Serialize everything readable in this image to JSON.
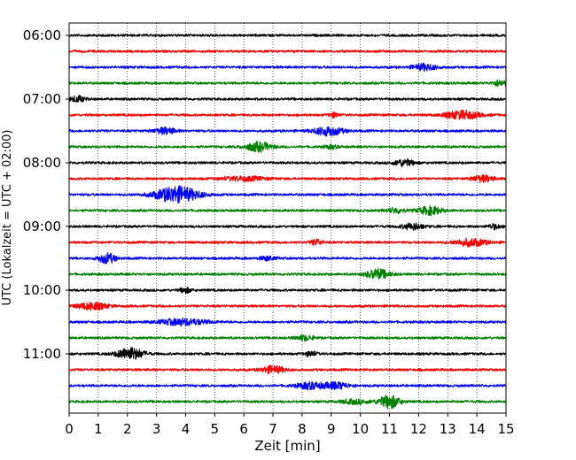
{
  "chart_data": {
    "type": "line",
    "subtype": "helicorder",
    "xlabel": "Zeit  [min]",
    "ylabel": "UTC (Lokalzeit = UTC + 02:00)",
    "xlim": [
      0,
      15
    ],
    "x_ticks": [
      0,
      1,
      2,
      3,
      4,
      5,
      6,
      7,
      8,
      9,
      10,
      11,
      12,
      13,
      14,
      15
    ],
    "y_tick_labels": [
      "06:00",
      "07:00",
      "08:00",
      "09:00",
      "10:00",
      "11:00"
    ],
    "grid": {
      "x": true,
      "y": false,
      "style": "dotted"
    },
    "trace_colors": [
      "#000000",
      "#ff0000",
      "#0000ff",
      "#008000"
    ],
    "traces": [
      {
        "start": "06:00",
        "events": []
      },
      {
        "start": "06:15",
        "events": []
      },
      {
        "start": "06:30",
        "events": [
          {
            "t": 12.2,
            "amp": 0.4,
            "dur": 0.8
          }
        ]
      },
      {
        "start": "06:45",
        "events": [
          {
            "t": 14.8,
            "amp": 0.35,
            "dur": 0.5
          }
        ]
      },
      {
        "start": "07:00",
        "events": [
          {
            "t": 0.3,
            "amp": 0.35,
            "dur": 0.5
          }
        ]
      },
      {
        "start": "07:15",
        "events": [
          {
            "t": 9.1,
            "amp": 0.3,
            "dur": 0.3
          },
          {
            "t": 13.5,
            "amp": 0.5,
            "dur": 1.2
          }
        ]
      },
      {
        "start": "07:30",
        "events": [
          {
            "t": 3.3,
            "amp": 0.4,
            "dur": 0.7
          },
          {
            "t": 8.9,
            "amp": 0.55,
            "dur": 1.0
          }
        ]
      },
      {
        "start": "07:45",
        "events": [
          {
            "t": 6.5,
            "amp": 0.55,
            "dur": 0.9
          },
          {
            "t": 9.0,
            "amp": 0.2,
            "dur": 0.5
          }
        ]
      },
      {
        "start": "08:00",
        "events": [
          {
            "t": 11.5,
            "amp": 0.4,
            "dur": 0.7
          }
        ]
      },
      {
        "start": "08:15",
        "events": [
          {
            "t": 6.0,
            "amp": 0.25,
            "dur": 1.5
          },
          {
            "t": 14.2,
            "amp": 0.4,
            "dur": 0.7
          }
        ]
      },
      {
        "start": "08:30",
        "events": [
          {
            "t": 3.7,
            "amp": 1.0,
            "dur": 1.5
          }
        ]
      },
      {
        "start": "08:45",
        "events": [
          {
            "t": 11.2,
            "amp": 0.3,
            "dur": 0.6
          },
          {
            "t": 12.4,
            "amp": 0.5,
            "dur": 0.8
          }
        ]
      },
      {
        "start": "09:00",
        "events": [
          {
            "t": 11.8,
            "amp": 0.4,
            "dur": 0.7
          },
          {
            "t": 14.6,
            "amp": 0.3,
            "dur": 0.4
          }
        ]
      },
      {
        "start": "09:15",
        "events": [
          {
            "t": 8.5,
            "amp": 0.35,
            "dur": 0.4
          },
          {
            "t": 13.8,
            "amp": 0.45,
            "dur": 1.1
          }
        ]
      },
      {
        "start": "09:30",
        "events": [
          {
            "t": 1.3,
            "amp": 0.6,
            "dur": 0.6
          },
          {
            "t": 6.8,
            "amp": 0.25,
            "dur": 0.5
          }
        ]
      },
      {
        "start": "09:45",
        "events": [
          {
            "t": 10.6,
            "amp": 0.6,
            "dur": 0.8
          }
        ]
      },
      {
        "start": "10:00",
        "events": [
          {
            "t": 4.0,
            "amp": 0.3,
            "dur": 0.4
          }
        ]
      },
      {
        "start": "10:15",
        "events": [
          {
            "t": 0.8,
            "amp": 0.45,
            "dur": 1.0
          }
        ]
      },
      {
        "start": "10:30",
        "events": [
          {
            "t": 3.9,
            "amp": 0.4,
            "dur": 1.6
          }
        ]
      },
      {
        "start": "10:45",
        "events": [
          {
            "t": 8.1,
            "amp": 0.3,
            "dur": 0.6
          }
        ]
      },
      {
        "start": "11:00",
        "events": [
          {
            "t": 2.1,
            "amp": 0.75,
            "dur": 0.9
          },
          {
            "t": 8.3,
            "amp": 0.3,
            "dur": 0.4
          }
        ]
      },
      {
        "start": "11:15",
        "events": [
          {
            "t": 7.0,
            "amp": 0.45,
            "dur": 0.8
          }
        ]
      },
      {
        "start": "11:30",
        "events": [
          {
            "t": 8.3,
            "amp": 0.4,
            "dur": 1.0
          },
          {
            "t": 9.2,
            "amp": 0.4,
            "dur": 0.8
          }
        ]
      },
      {
        "start": "11:45",
        "events": [
          {
            "t": 11.0,
            "amp": 0.8,
            "dur": 0.7
          },
          {
            "t": 9.8,
            "amp": 0.25,
            "dur": 1.0
          }
        ]
      }
    ]
  }
}
